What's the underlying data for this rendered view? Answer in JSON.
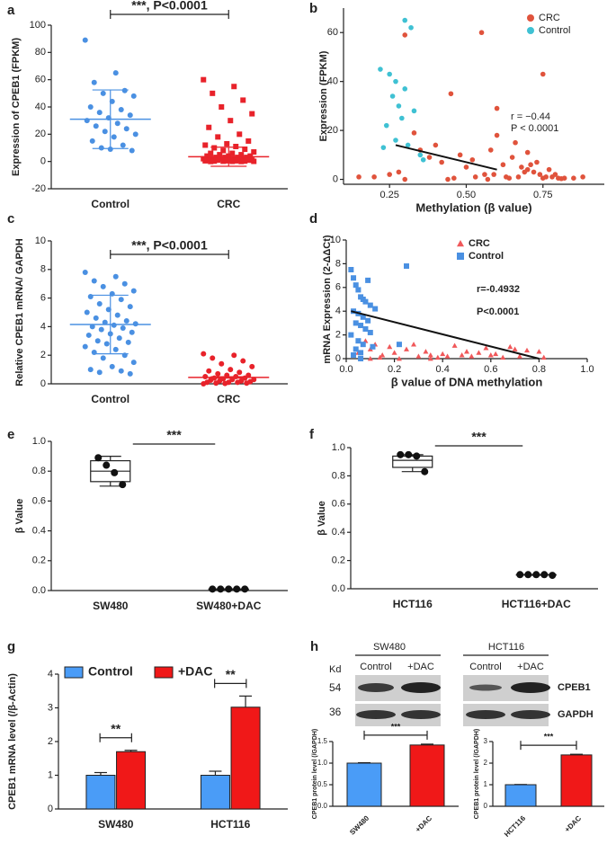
{
  "chart_data": [
    {
      "panel": "a",
      "type": "strip",
      "ylabel": "Expression of CPEB1 (FPKM)",
      "categories": [
        "Control",
        "CRC"
      ],
      "groups": [
        {
          "color": "#4a90e2",
          "marker": "circle",
          "values": [
            89,
            65,
            58,
            52,
            50,
            48,
            44,
            40,
            38,
            36,
            34,
            32,
            30,
            28,
            26,
            24,
            22,
            20,
            18,
            15,
            12,
            10,
            8,
            9
          ],
          "mean": 31,
          "sd": 21.5
        },
        {
          "color": "#e8222a",
          "marker": "square",
          "values": [
            60,
            55,
            50,
            45,
            40,
            35,
            30,
            25,
            20,
            18,
            15,
            13,
            12,
            11,
            10,
            9,
            8,
            7,
            6,
            6,
            5,
            5,
            4,
            4,
            4,
            3,
            3,
            3,
            3,
            2,
            2,
            2,
            2,
            2,
            1,
            1,
            1,
            1,
            1,
            1,
            0.5,
            0.5,
            0.5,
            0.3,
            0.3,
            0.2,
            0.1,
            0.1,
            0,
            0
          ],
          "mean": 3.5,
          "sd": 7
        }
      ],
      "ylim": [
        -20,
        100
      ],
      "yticks": [
        -20,
        0,
        20,
        40,
        60,
        80,
        100
      ],
      "annotation": "***, P<0.0001"
    },
    {
      "panel": "b",
      "type": "scatter",
      "ylabel": "Expression (FPKM)",
      "xlabel": "Methylation (β value)",
      "series": [
        {
          "name": "CRC",
          "color": "#e0533c",
          "marker": "circle",
          "x": [
            0.3,
            0.55,
            0.6,
            0.75,
            0.45,
            0.33,
            0.4,
            0.48,
            0.52,
            0.58,
            0.62,
            0.65,
            0.68,
            0.7,
            0.72,
            0.74,
            0.76,
            0.78,
            0.8,
            0.82,
            0.85,
            0.88,
            0.5,
            0.42,
            0.38,
            0.35,
            0.28,
            0.25,
            0.2,
            0.15,
            0.6,
            0.66,
            0.7,
            0.73,
            0.77,
            0.56,
            0.63,
            0.69,
            0.71,
            0.79,
            0.46,
            0.53,
            0.59,
            0.64,
            0.67,
            0.75,
            0.81,
            0.3,
            0.44,
            0.57
          ],
          "values": [
            59,
            60,
            29,
            43,
            35,
            19,
            14,
            10,
            8,
            12,
            6,
            9,
            5,
            4,
            3,
            2,
            1,
            1,
            0.5,
            0.5,
            0.5,
            1,
            5,
            7,
            9,
            12,
            3,
            2,
            1,
            1,
            18,
            15,
            11,
            7,
            4,
            2,
            1,
            3,
            6,
            2,
            0.5,
            1,
            2,
            0.5,
            1,
            0.5,
            0.3,
            0,
            0,
            0
          ]
        },
        {
          "name": "Control",
          "color": "#3fc1d3",
          "marker": "circle",
          "x": [
            0.3,
            0.32,
            0.22,
            0.25,
            0.27,
            0.3,
            0.26,
            0.28,
            0.33,
            0.29,
            0.24,
            0.27,
            0.31,
            0.23,
            0.35,
            0.36
          ],
          "values": [
            65,
            62,
            45,
            43,
            40,
            37,
            34,
            30,
            28,
            25,
            22,
            16,
            14,
            13,
            10,
            8
          ]
        }
      ],
      "fit": {
        "x": [
          0.27,
          0.6
        ],
        "y": [
          14,
          4
        ]
      },
      "annotations": [
        "r = −0.44",
        "P < 0.0001"
      ],
      "xlim": [
        0.1,
        0.95
      ],
      "xticks": [
        0.25,
        {
          "value": 0.5,
          "label": "0.50"
        },
        0.75
      ],
      "ylim": [
        -2,
        70
      ],
      "yticks": [
        0,
        20,
        40,
        60
      ]
    },
    {
      "panel": "c",
      "type": "strip",
      "ylabel": "Relative CPEB1 mRNA/ GAPDH",
      "categories": [
        "Control",
        "CRC"
      ],
      "groups": [
        {
          "color": "#4a90e2",
          "marker": "circle",
          "values": [
            7.8,
            7.5,
            7.2,
            7,
            6.8,
            6.5,
            6.3,
            6.1,
            5.9,
            5.6,
            5.4,
            5.2,
            5,
            4.8,
            4.6,
            4.4,
            4.3,
            4.2,
            4.1,
            4,
            3.9,
            3.8,
            3.6,
            3.5,
            3.4,
            3.2,
            3,
            2.9,
            2.8,
            2.6,
            2.4,
            2.2,
            2,
            1.8,
            1.5,
            1.2,
            1,
            0.9,
            0.8,
            0.7
          ],
          "mean": 4.15,
          "sd": 2.05
        },
        {
          "color": "#e8222a",
          "marker": "circle",
          "values": [
            2.1,
            2,
            1.8,
            1.6,
            1.4,
            1.2,
            1,
            0.9,
            0.8,
            0.7,
            0.6,
            0.6,
            0.5,
            0.5,
            0.4,
            0.4,
            0.35,
            0.3,
            0.3,
            0.25,
            0.2,
            0.2,
            0.15,
            0.1,
            0.1,
            0.1,
            0.05,
            0.05,
            0.02,
            0
          ],
          "mean": 0.45,
          "sd": 0.05
        }
      ],
      "ylim": [
        0,
        10
      ],
      "yticks": [
        0,
        2,
        4,
        6,
        8,
        10
      ],
      "annotation": "***, P<0.0001"
    },
    {
      "panel": "d",
      "type": "scatter",
      "ylabel": "mRNA Expression (2-ΔΔCt)",
      "xlabel": "β value of DNA methylation",
      "series": [
        {
          "name": "CRC",
          "color": "#f0585a",
          "marker": "triangle",
          "x": [
            0.05,
            0.08,
            0.1,
            0.12,
            0.15,
            0.18,
            0.2,
            0.25,
            0.28,
            0.3,
            0.33,
            0.35,
            0.38,
            0.4,
            0.42,
            0.45,
            0.48,
            0.5,
            0.52,
            0.55,
            0.58,
            0.6,
            0.62,
            0.65,
            0.68,
            0.7,
            0.72,
            0.75,
            0.8,
            0.82,
            0.22,
            0.1,
            0.06,
            0.14,
            0.35
          ],
          "values": [
            0.5,
            1.5,
            0.8,
            1.2,
            0.3,
            1.0,
            0.5,
            0.8,
            1.2,
            0.2,
            0.6,
            0.3,
            0.1,
            0.4,
            0.2,
            1.1,
            0.3,
            0.6,
            0.2,
            0.5,
            0.9,
            0.3,
            0.4,
            0.1,
            1.0,
            0.8,
            0.2,
            0.7,
            0.6,
            0.1,
            0.0,
            0.0,
            0.0,
            0.1,
            0.0
          ]
        },
        {
          "name": "Control",
          "color": "#4a90e2",
          "marker": "square",
          "x": [
            0.02,
            0.03,
            0.04,
            0.05,
            0.06,
            0.07,
            0.08,
            0.1,
            0.12,
            0.03,
            0.05,
            0.07,
            0.09,
            0.04,
            0.06,
            0.08,
            0.1,
            0.02,
            0.05,
            0.07,
            0.11,
            0.04,
            0.06,
            0.25,
            0.22,
            0.09,
            0.03,
            0.06
          ],
          "values": [
            7.5,
            6.8,
            6.2,
            5.8,
            5.2,
            5,
            4.8,
            4.5,
            4.2,
            4,
            3.8,
            3.5,
            3.2,
            3,
            2.8,
            2.5,
            2.2,
            2,
            1.5,
            1.2,
            1,
            0.8,
            0.5,
            7.8,
            1.2,
            6.6,
            0.3,
            0
          ]
        }
      ],
      "fit": {
        "x": [
          0.02,
          0.8
        ],
        "y": [
          4.0,
          0
        ]
      },
      "annotations": [
        "r=-0.4932",
        "P<0.0001"
      ],
      "xlim": [
        0,
        1
      ],
      "xticks": [
        {
          "value": 0,
          "label": "0.0"
        },
        0.2,
        0.4,
        0.6,
        0.8,
        {
          "value": 1,
          "label": "1.0"
        }
      ],
      "ylim": [
        0,
        10
      ],
      "yticks": [
        0,
        2,
        4,
        6,
        8,
        10
      ]
    },
    {
      "panel": "e",
      "type": "box",
      "ylabel": "β Value",
      "categories": [
        "SW480",
        "SW480+DAC"
      ],
      "groups": [
        {
          "values": [
            0.89,
            0.84,
            0.79,
            0.71
          ],
          "box": {
            "min": 0.7,
            "q1": 0.73,
            "median": 0.8,
            "q3": 0.87,
            "max": 0.9
          }
        },
        {
          "values": [
            0.01,
            0.01,
            0.01,
            0.01,
            0.01
          ],
          "box": {
            "min": 0.01,
            "q1": 0.01,
            "median": 0.01,
            "q3": 0.01,
            "max": 0.01
          }
        }
      ],
      "ylim": [
        0,
        1
      ],
      "yticks": [
        {
          "value": 0,
          "label": "0.0"
        },
        0.2,
        0.4,
        0.6,
        0.8,
        {
          "value": 1,
          "label": "1.0"
        }
      ],
      "annotation": "***"
    },
    {
      "panel": "f",
      "type": "box",
      "ylabel": "β Value",
      "categories": [
        "HCT116",
        "HCT116+DAC"
      ],
      "groups": [
        {
          "values": [
            0.95,
            0.95,
            0.94,
            0.83
          ],
          "box": {
            "min": 0.83,
            "q1": 0.86,
            "median": 0.91,
            "q3": 0.94,
            "max": 0.95
          }
        },
        {
          "values": [
            0.1,
            0.1,
            0.1,
            0.1,
            0.095
          ],
          "box": {
            "min": 0.095,
            "q1": 0.097,
            "median": 0.1,
            "q3": 0.1,
            "max": 0.1
          }
        }
      ],
      "ylim": [
        0,
        1
      ],
      "yticks": [
        {
          "value": 0,
          "label": "0.0"
        },
        0.2,
        0.4,
        0.6,
        0.8,
        {
          "value": 1,
          "label": "1.0"
        }
      ],
      "annotation": "***"
    },
    {
      "panel": "g",
      "type": "bar",
      "ylabel": "CPEB1 mRNA level (/β-Actin)",
      "categories": [
        "SW480",
        "HCT116"
      ],
      "series": [
        {
          "name": "Control",
          "color": "#4a9cf7",
          "values": [
            1.0,
            1.0
          ],
          "errors": [
            0.08,
            0.12
          ]
        },
        {
          "name": "+DAC",
          "color": "#f01818",
          "values": [
            1.7,
            3.02
          ],
          "errors": [
            0.04,
            0.33
          ]
        }
      ],
      "ylim": [
        0,
        4
      ],
      "yticks": [
        0,
        1,
        2,
        3,
        4
      ],
      "annotations": [
        "**",
        "**"
      ]
    },
    {
      "type": "bar",
      "ylabel": "CPEB1 protein level (/GAPDH)",
      "categories": [
        "SW480",
        "+DAC"
      ],
      "values": [
        1.0,
        1.42
      ],
      "errors": [
        0.01,
        0.02
      ],
      "colors": [
        "#4a9cf7",
        "#f01818"
      ],
      "ylim": [
        0,
        1.5
      ],
      "yticks": [
        {
          "value": 0,
          "label": "0.0"
        },
        0.5,
        {
          "value": 1,
          "label": "1.0"
        },
        1.5
      ],
      "annotation": "***"
    },
    {
      "type": "bar",
      "ylabel": "CPEB1 protein level (/GAPDH)",
      "categories": [
        "HCT116",
        "+DAC"
      ],
      "values": [
        1.0,
        2.38
      ],
      "errors": [
        0.01,
        0.03
      ],
      "colors": [
        "#4a9cf7",
        "#f01818"
      ],
      "ylim": [
        0,
        3
      ],
      "yticks": [
        0,
        1,
        2,
        3
      ],
      "annotation": "***"
    }
  ],
  "blot": {
    "panel": "h",
    "cell_lines": [
      "SW480",
      "HCT116"
    ],
    "lanes": [
      "Control",
      "+DAC",
      "Control",
      "+DAC"
    ],
    "kd_label": "Kd",
    "markers": [
      "54",
      "36"
    ],
    "bands": [
      "CPEB1",
      "GAPDH"
    ]
  }
}
